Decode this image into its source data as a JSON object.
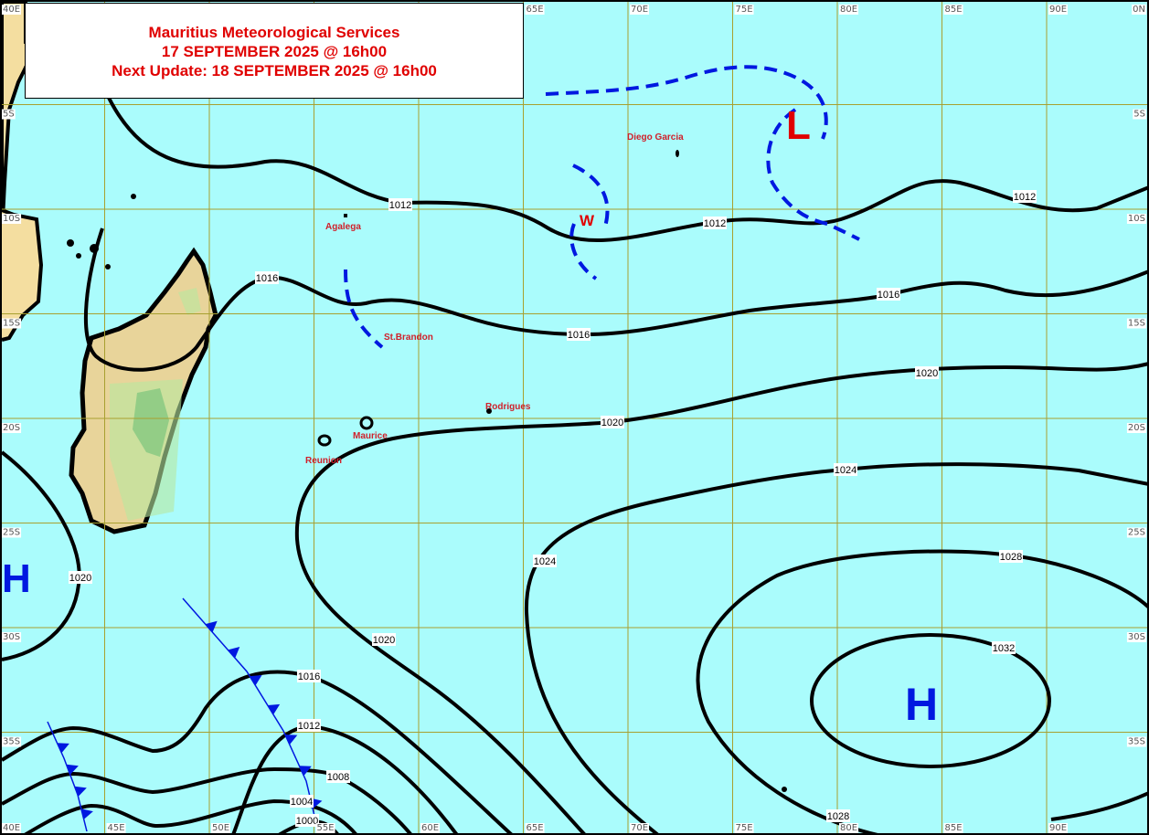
{
  "header": {
    "agency": "Mauritius Meteorological Services",
    "valid_time": "17 SEPTEMBER 2025 @ 16h00",
    "next_update": "Next Update: 18 SEPTEMBER 2025 @ 16h00"
  },
  "grid": {
    "top_lon_labels": [
      "40E",
      "65E",
      "70E",
      "75E",
      "80E",
      "85E",
      "90E"
    ],
    "bottom_lon_labels": [
      "40E",
      "45E",
      "50E",
      "55E",
      "60E",
      "65E",
      "70E",
      "75E",
      "80E",
      "85E",
      "90E"
    ],
    "left_lat_labels": [
      "5S",
      "10S",
      "15S",
      "20S",
      "25S",
      "30S",
      "35S"
    ],
    "right_lat_labels": [
      "0N",
      "5S",
      "10S",
      "15S",
      "20S",
      "25S",
      "30S",
      "35S"
    ]
  },
  "isobar_labels": [
    "1012",
    "1012",
    "1012",
    "1016",
    "1016",
    "1016",
    "1020",
    "1020",
    "1020",
    "1020",
    "1024",
    "1024",
    "1028",
    "1028",
    "1032",
    "1016",
    "1012",
    "1008",
    "1004",
    "1000"
  ],
  "places": [
    "Diego Garcia",
    "Agalega",
    "St.Brandon",
    "Rodrigues",
    "Maurice",
    "Reunion"
  ],
  "pressure_centers": {
    "low": "L",
    "high_east": "H",
    "high_west": "H",
    "trough_marker": "W"
  },
  "colors": {
    "ocean": "#aafcfc",
    "land": "#f0d898",
    "grid": "#a8a030",
    "isobar": "#000000",
    "front": "#0018e0",
    "text_red": "#e00000",
    "high": "#0018e0",
    "low": "#e00000"
  }
}
